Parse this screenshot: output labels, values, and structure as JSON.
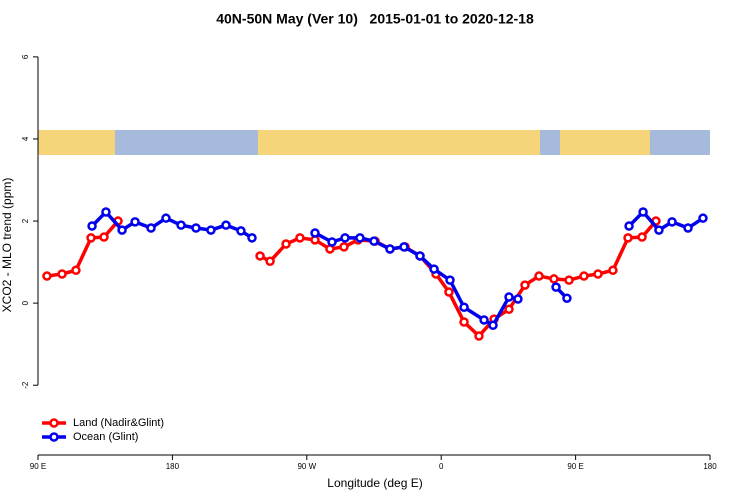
{
  "chart_data": {
    "type": "line",
    "title": "40N-50N May (Ver 10)   2015-01-01 to 2020-12-18",
    "xlabel": "Longitude (deg E)",
    "ylabel": "XCO2 - MLO trend (ppm)",
    "xlim": [
      90,
      540
    ],
    "xticks": [
      {
        "value": 90,
        "label": "90 E"
      },
      {
        "value": 180,
        "label": "180"
      },
      {
        "value": 270,
        "label": "90 W"
      },
      {
        "value": 360,
        "label": "0"
      },
      {
        "value": 450,
        "label": "90 E"
      },
      {
        "value": 540,
        "label": "180"
      }
    ],
    "ylim": [
      -3.7,
      6.46
    ],
    "yticks": [
      -2,
      0,
      2,
      4,
      6
    ],
    "legend": "bottom-left",
    "series": [
      {
        "name": "Land (Nadir&Glint)",
        "color": "#ff0000",
        "x": [
          96.0,
          106.1,
          115.4,
          125.5,
          134.2,
          143.6,
          null,
          238.7,
          245.4,
          256.1,
          265.4,
          275.5,
          285.5,
          294.9,
          304.3,
          315.7,
          325.7,
          335.8,
          345.8,
          356.5,
          365.2,
          375.3,
          385.3,
          395.4,
          405.4,
          416.1,
          425.5,
          435.5,
          445.6,
          455.6,
          465.0,
          475.0,
          485.1,
          494.5,
          503.8
        ],
        "values": [
          0.66,
          0.71,
          0.8,
          1.59,
          1.61,
          2.0,
          null,
          1.15,
          1.02,
          1.44,
          1.59,
          1.54,
          1.32,
          1.37,
          1.54,
          1.51,
          1.32,
          1.37,
          1.15,
          0.71,
          0.27,
          -0.46,
          -0.8,
          -0.39,
          -0.15,
          0.44,
          0.66,
          0.59,
          0.56,
          0.66,
          0.71,
          0.8,
          1.59,
          1.61,
          2.0
        ]
      },
      {
        "name": "Ocean (Glint)",
        "color": "#0000ee",
        "x": [
          126.2,
          135.5,
          146.3,
          155.0,
          165.7,
          175.7,
          185.8,
          195.8,
          205.8,
          215.9,
          225.9,
          233.3,
          null,
          275.5,
          286.9,
          295.6,
          305.6,
          315.0,
          325.7,
          335.1,
          345.8,
          355.2,
          365.9,
          375.3,
          388.7,
          394.7,
          405.4,
          411.4,
          null,
          436.9,
          444.2,
          null,
          485.8,
          495.2,
          505.8,
          514.6,
          525.3,
          535.3
        ],
        "values": [
          1.88,
          2.22,
          1.78,
          1.98,
          1.83,
          2.07,
          1.9,
          1.83,
          1.78,
          1.9,
          1.76,
          1.59,
          null,
          1.71,
          1.49,
          1.59,
          1.59,
          1.51,
          1.32,
          1.37,
          1.15,
          0.83,
          0.56,
          -0.1,
          -0.41,
          -0.54,
          0.15,
          0.1,
          null,
          0.39,
          0.12,
          null,
          1.88,
          2.22,
          1.78,
          1.98,
          1.83,
          2.07
        ]
      }
    ]
  }
}
